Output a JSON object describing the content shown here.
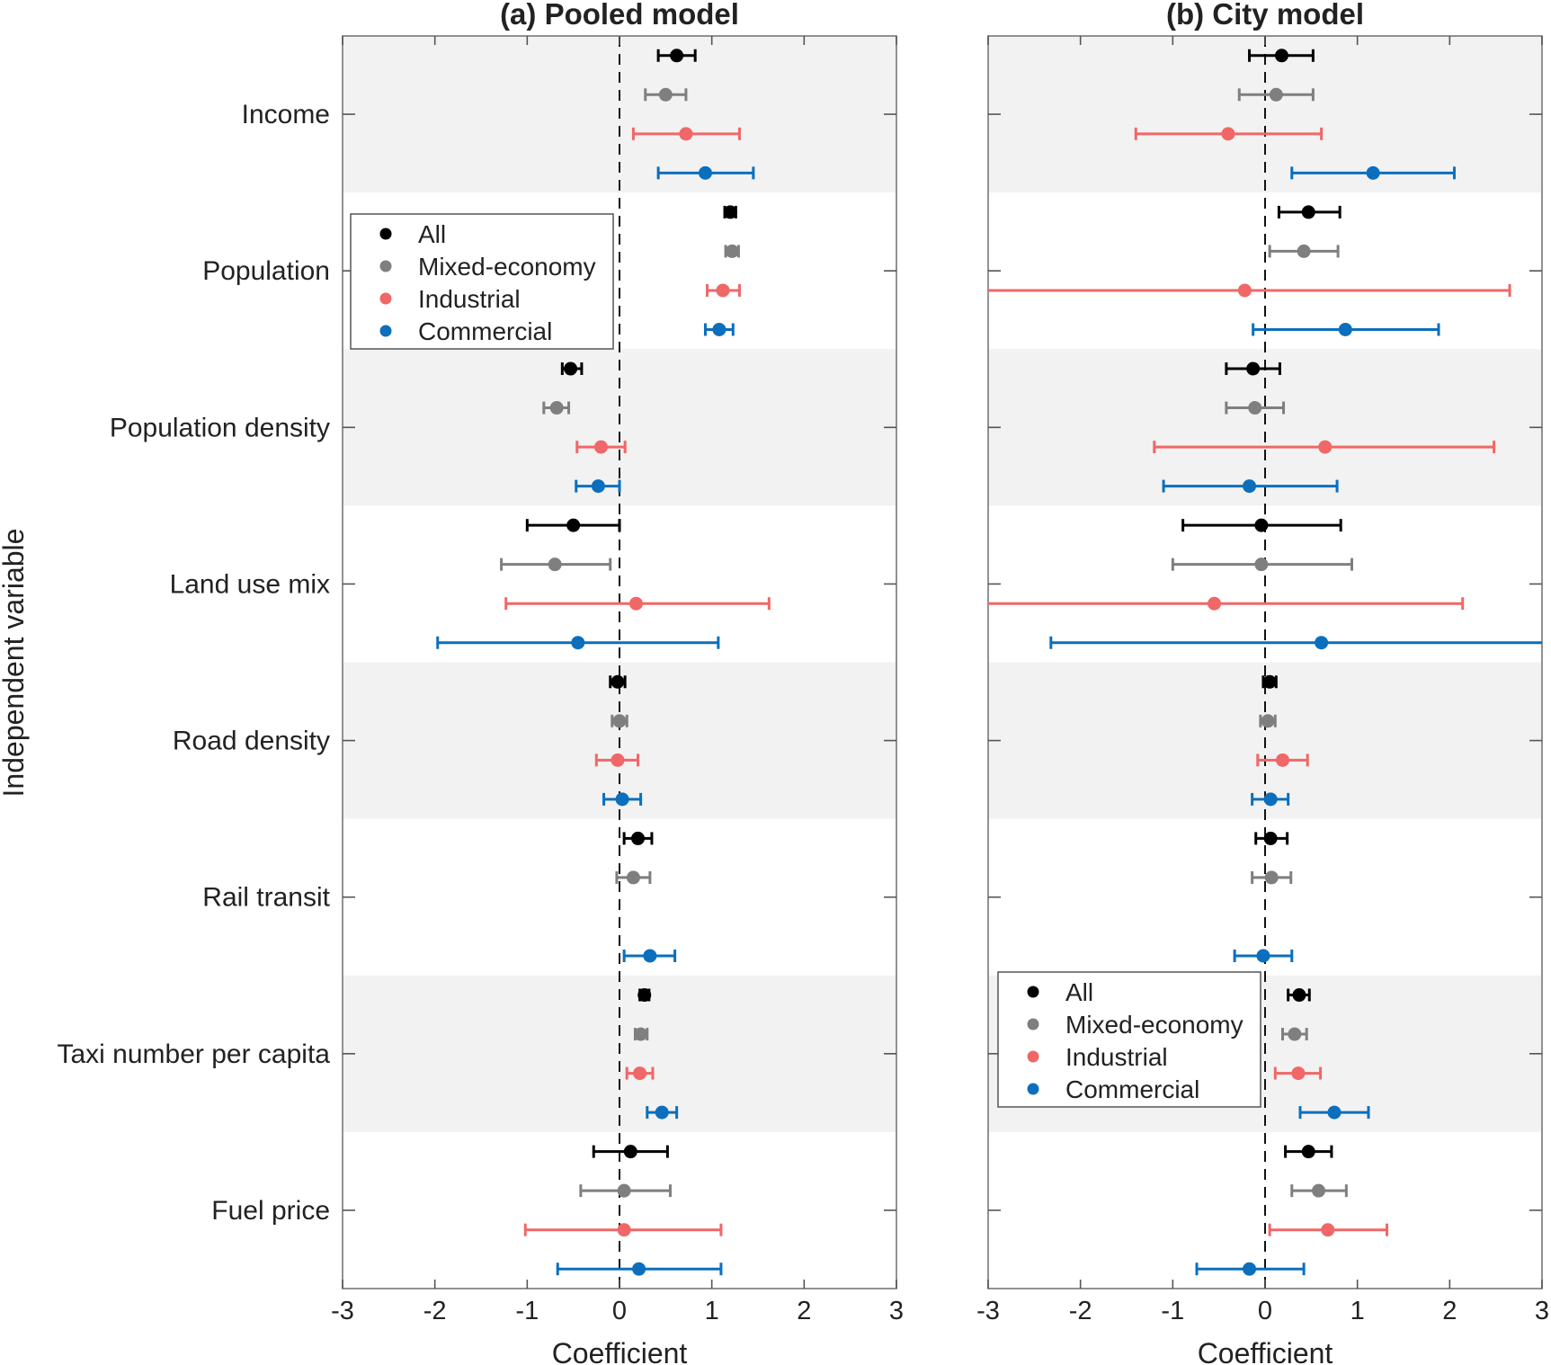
{
  "chart_data": [
    {
      "type": "scatter",
      "panel_id": "pooled",
      "title": "(a) Pooled model",
      "xlabel": "Coefficient",
      "ylabel": "Independent variable",
      "xlim": [
        -3,
        3
      ],
      "xticks": [
        "-3",
        "-2",
        "-1",
        "0",
        "1",
        "2",
        "3"
      ],
      "reference_line_x": 0,
      "legend_position": "upper-left",
      "categories": [
        "Income",
        "Population",
        "Population density",
        "Land use mix",
        "Road density",
        "Rail transit",
        "Taxi number per capita",
        "Fuel price"
      ],
      "series": [
        {
          "name": "All",
          "color": "#000000",
          "values": [
            0.62,
            1.2,
            -0.53,
            -0.5,
            -0.02,
            0.2,
            0.27,
            0.12
          ],
          "ci_low": [
            0.42,
            1.14,
            -0.62,
            -1.0,
            -0.1,
            0.05,
            0.22,
            -0.28
          ],
          "ci_high": [
            0.82,
            1.26,
            -0.41,
            0.0,
            0.06,
            0.35,
            0.32,
            0.52
          ]
        },
        {
          "name": "Mixed-economy",
          "color": "#7f7f7f",
          "values": [
            0.5,
            1.22,
            -0.68,
            -0.7,
            0.0,
            0.15,
            0.23,
            0.05
          ],
          "ci_low": [
            0.28,
            1.15,
            -0.82,
            -1.28,
            -0.08,
            -0.03,
            0.17,
            -0.42
          ],
          "ci_high": [
            0.72,
            1.29,
            -0.55,
            -0.1,
            0.08,
            0.33,
            0.3,
            0.55
          ]
        },
        {
          "name": "Industrial",
          "color": "#f06767",
          "values": [
            0.72,
            1.12,
            -0.2,
            0.18,
            -0.02,
            null,
            0.22,
            0.05
          ],
          "ci_low": [
            0.15,
            0.95,
            -0.46,
            -1.23,
            -0.25,
            null,
            0.08,
            -1.02
          ],
          "ci_high": [
            1.3,
            1.3,
            0.06,
            1.62,
            0.2,
            null,
            0.36,
            1.1
          ]
        },
        {
          "name": "Commercial",
          "color": "#0b6fbd",
          "values": [
            0.93,
            1.08,
            -0.23,
            -0.45,
            0.03,
            0.33,
            0.46,
            0.21
          ],
          "ci_low": [
            0.42,
            0.93,
            -0.47,
            -1.97,
            -0.17,
            0.05,
            0.3,
            -0.67
          ],
          "ci_high": [
            1.45,
            1.23,
            0.0,
            1.07,
            0.23,
            0.6,
            0.62,
            1.1
          ]
        }
      ]
    },
    {
      "type": "scatter",
      "panel_id": "city",
      "title": "(b) City model",
      "xlabel": "Coefficient",
      "xlim": [
        -3,
        3
      ],
      "xticks": [
        "-3",
        "-2",
        "-1",
        "0",
        "1",
        "2",
        "3"
      ],
      "reference_line_x": 0,
      "legend_position": "lower-left",
      "categories": [
        "Income",
        "Population",
        "Population density",
        "Land use mix",
        "Road density",
        "Rail transit",
        "Taxi number per capita",
        "Fuel price"
      ],
      "series": [
        {
          "name": "All",
          "color": "#000000",
          "values": [
            0.18,
            0.47,
            -0.13,
            -0.04,
            0.05,
            0.06,
            0.37,
            0.47
          ],
          "ci_low": [
            -0.17,
            0.15,
            -0.42,
            -0.89,
            -0.02,
            -0.1,
            0.25,
            0.22
          ],
          "ci_high": [
            0.52,
            0.81,
            0.16,
            0.82,
            0.12,
            0.24,
            0.48,
            0.72
          ]
        },
        {
          "name": "Mixed-economy",
          "color": "#7f7f7f",
          "values": [
            0.12,
            0.42,
            -0.11,
            -0.04,
            0.03,
            0.07,
            0.32,
            0.58
          ],
          "ci_low": [
            -0.28,
            0.05,
            -0.42,
            -1.0,
            -0.05,
            -0.14,
            0.19,
            0.29
          ],
          "ci_high": [
            0.52,
            0.79,
            0.2,
            0.94,
            0.11,
            0.28,
            0.45,
            0.88
          ]
        },
        {
          "name": "Industrial",
          "color": "#f06767",
          "values": [
            -0.4,
            -0.22,
            0.65,
            -0.55,
            0.19,
            null,
            0.36,
            0.68
          ],
          "ci_low": [
            -1.4,
            -3.0,
            -1.2,
            -3.0,
            -0.08,
            null,
            0.11,
            0.05
          ],
          "ci_high": [
            0.61,
            2.65,
            2.48,
            2.14,
            0.46,
            null,
            0.6,
            1.32
          ]
        },
        {
          "name": "Commercial",
          "color": "#0b6fbd",
          "values": [
            1.17,
            0.87,
            -0.17,
            0.61,
            0.06,
            -0.02,
            0.75,
            -0.17
          ],
          "ci_low": [
            0.29,
            -0.13,
            -1.1,
            -2.32,
            -0.14,
            -0.33,
            0.38,
            -0.74
          ],
          "ci_high": [
            2.05,
            1.88,
            0.78,
            3.0,
            0.25,
            0.29,
            1.12,
            0.42
          ]
        }
      ]
    }
  ]
}
